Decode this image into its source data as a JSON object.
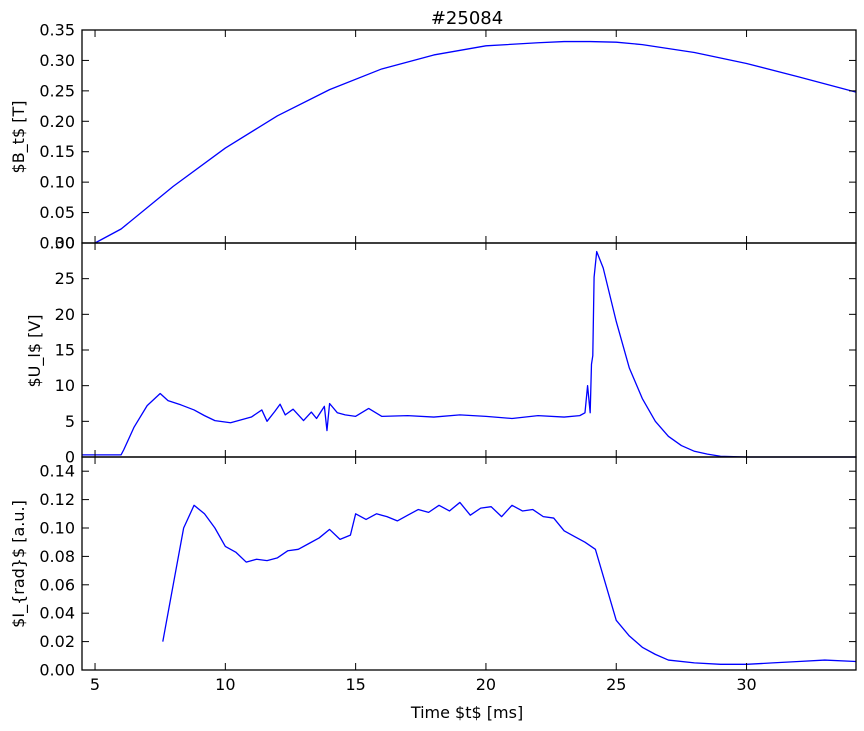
{
  "title": "#25084",
  "xlabel": "Time $t$ [ms]",
  "colors": {
    "series": "#0000ff",
    "frame": "#000000"
  },
  "chart_data": [
    {
      "type": "line",
      "ylabel": "$B_t$ [T]",
      "xlim": [
        4.5,
        34.2
      ],
      "ylim": [
        0.0,
        0.35
      ],
      "xticks": [
        "5",
        "10",
        "15",
        "20",
        "25",
        "30"
      ],
      "yticks": [
        "0.00",
        "0.05",
        "0.10",
        "0.15",
        "0.20",
        "0.25",
        "0.30",
        "0.35"
      ],
      "series": [
        {
          "x": [
            5.0,
            6.0,
            8.0,
            10.0,
            12.0,
            14.0,
            16.0,
            18.0,
            20.0,
            22.0,
            23.0,
            24.0,
            25.0,
            26.0,
            28.0,
            30.0,
            32.0,
            34.2
          ],
          "values": [
            0.0,
            0.023,
            0.093,
            0.156,
            0.209,
            0.252,
            0.286,
            0.309,
            0.324,
            0.329,
            0.331,
            0.331,
            0.33,
            0.326,
            0.313,
            0.295,
            0.273,
            0.248
          ]
        }
      ]
    },
    {
      "type": "line",
      "ylabel": "$U_l$ [V]",
      "xlim": [
        4.5,
        34.2
      ],
      "ylim": [
        0,
        30
      ],
      "xticks": [
        "5",
        "10",
        "15",
        "20",
        "25",
        "30"
      ],
      "yticks": [
        "0",
        "5",
        "10",
        "15",
        "20",
        "25",
        "30"
      ],
      "series": [
        {
          "x": [
            4.5,
            6.0,
            6.1,
            6.5,
            7.0,
            7.5,
            7.8,
            8.3,
            8.8,
            9.2,
            9.6,
            10.2,
            10.6,
            11.0,
            11.4,
            11.6,
            11.9,
            12.1,
            12.3,
            12.6,
            13.0,
            13.3,
            13.5,
            13.8,
            13.9,
            14.0,
            14.3,
            14.6,
            15.0,
            15.5,
            16.0,
            17.0,
            18.0,
            19.0,
            20.0,
            21.0,
            22.0,
            23.0,
            23.6,
            23.8,
            23.9,
            24.0,
            24.05,
            24.1,
            24.15,
            24.25,
            24.5,
            25.0,
            25.5,
            26.0,
            26.5,
            27.0,
            27.5,
            28.0,
            28.5,
            29.0,
            30.0,
            34.2
          ],
          "values": [
            0.3,
            0.3,
            1.0,
            4.2,
            7.2,
            8.9,
            7.9,
            7.3,
            6.6,
            5.8,
            5.1,
            4.8,
            5.2,
            5.6,
            6.6,
            5.0,
            6.4,
            7.4,
            5.9,
            6.7,
            5.1,
            6.3,
            5.4,
            7.1,
            3.7,
            7.5,
            6.2,
            5.9,
            5.7,
            6.8,
            5.7,
            5.8,
            5.6,
            5.9,
            5.7,
            5.4,
            5.8,
            5.6,
            5.8,
            6.2,
            10.0,
            6.2,
            13.0,
            14.2,
            25.2,
            28.8,
            26.5,
            19.0,
            12.5,
            8.2,
            5.0,
            2.9,
            1.6,
            0.8,
            0.4,
            0.1,
            0.0,
            0.0
          ]
        }
      ]
    },
    {
      "type": "line",
      "ylabel": "$I_{rad}$ [a.u.]",
      "xlim": [
        4.5,
        34.2
      ],
      "ylim": [
        0.0,
        0.15
      ],
      "xticks": [
        "5",
        "10",
        "15",
        "20",
        "25",
        "30"
      ],
      "yticks": [
        "0.00",
        "0.02",
        "0.04",
        "0.06",
        "0.08",
        "0.10",
        "0.12",
        "0.14"
      ],
      "series": [
        {
          "x": [
            7.6,
            8.0,
            8.4,
            8.8,
            9.2,
            9.6,
            10.0,
            10.4,
            10.8,
            11.2,
            11.6,
            12.0,
            12.4,
            12.8,
            13.2,
            13.6,
            14.0,
            14.4,
            14.8,
            15.0,
            15.4,
            15.8,
            16.2,
            16.6,
            17.0,
            17.4,
            17.8,
            18.2,
            18.6,
            19.0,
            19.4,
            19.8,
            20.2,
            20.6,
            21.0,
            21.4,
            21.8,
            22.2,
            22.6,
            23.0,
            23.4,
            23.8,
            24.2,
            24.6,
            25.0,
            25.5,
            26.0,
            26.5,
            27.0,
            28.0,
            29.0,
            30.0,
            31.0,
            32.0,
            33.0,
            34.2
          ],
          "values": [
            0.02,
            0.06,
            0.1,
            0.116,
            0.11,
            0.1,
            0.087,
            0.083,
            0.076,
            0.078,
            0.077,
            0.079,
            0.084,
            0.085,
            0.089,
            0.093,
            0.099,
            0.092,
            0.095,
            0.11,
            0.106,
            0.11,
            0.108,
            0.105,
            0.109,
            0.113,
            0.111,
            0.116,
            0.112,
            0.118,
            0.109,
            0.114,
            0.115,
            0.108,
            0.116,
            0.112,
            0.113,
            0.108,
            0.107,
            0.098,
            0.094,
            0.09,
            0.085,
            0.06,
            0.035,
            0.024,
            0.016,
            0.011,
            0.007,
            0.005,
            0.004,
            0.004,
            0.005,
            0.006,
            0.007,
            0.006
          ]
        }
      ]
    }
  ]
}
